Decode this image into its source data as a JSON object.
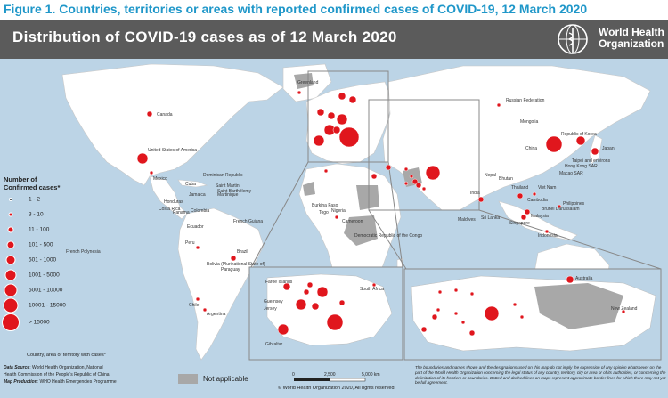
{
  "figure_title": "Figure 1. Countries, territories or areas with reported confirmed cases of COVID-19, 12 March 2020",
  "map_title": "Distribution of COVID-19  cases as of 12 March 2020",
  "who": {
    "line1": "World Health",
    "line2": "Organization"
  },
  "legend": {
    "title_line1": "Number of",
    "title_line2": "Confirmed cases*",
    "items": [
      {
        "label": "1 - 2"
      },
      {
        "label": "3 - 10"
      },
      {
        "label": "11 - 100"
      },
      {
        "label": "101 - 500"
      },
      {
        "label": "501 - 1000"
      },
      {
        "label": "1001 - 5000"
      },
      {
        "label": "5001 - 10000"
      },
      {
        "label": "10001 - 15000"
      },
      {
        "label": "> 15000"
      }
    ],
    "note": "Country, area or territory with cases*"
  },
  "not_applicable": "Not applicable",
  "scale": {
    "t0": "0",
    "t1": "2,500",
    "t2": "5,000 km"
  },
  "copyright": "© World Health Organization  2020, All rights reserved.",
  "source": {
    "line1_label": "Data Source",
    "line1_text": ": World Health Organization, National",
    "line2_text": "Health Commission of the People’s Republic of China",
    "line3_label": "Map Production",
    "line3_text": ": WHO Health Emergencies Programme"
  },
  "disclaimer": "The boundaries and names shown and the designations used on this map do not imply the expression of any opinion whatsoever on the part of the World Health Organization concerning the legal status of any country, territory, city or area or of its authorities, or concerning the delimitation of its frontiers or boundaries. Dotted and dashed lines on maps represent approximate border lines for which there may not yet be full agreement.",
  "map_labels": [
    "Canada",
    "United States of America",
    "Mexico",
    "Brazil",
    "Ecuador",
    "Peru",
    "Chile",
    "Argentina",
    "Colombia",
    "French Guiana",
    "Costa Rica",
    "Panama",
    "Paraguay",
    "Dominican Republic",
    "Saint Martin",
    "Martinique",
    "French Polynesia",
    "Saint Barthélemy",
    "Jamaica",
    "Cuba",
    "Honduras",
    "Bolivia (Plurinational State of)",
    "Russian Federation",
    "Mongolia",
    "China",
    "Japan",
    "Republic of Korea",
    "India",
    "Nepal",
    "Bhutan",
    "Sri Lanka",
    "Maldives",
    "Thailand",
    "Viet Nam",
    "Cambodia",
    "Malaysia",
    "Singapore",
    "Indonesia",
    "Philippines",
    "Brunei Darussalam",
    "Australia",
    "New Zealand",
    "Nigeria",
    "Togo",
    "Burkina Faso",
    "Cameroon",
    "Democratic Republic of the Congo",
    "South Africa",
    "Greenland",
    "Faroe Islands",
    "Gibraltar",
    "Hong Kong SAR",
    "Taipei and environs",
    "Macao SAR",
    "Guernsey",
    "Jersey"
  ],
  "colors": {
    "ocean": "#bcd4e6",
    "land": "#ffffff",
    "no_cases": "#ffffff",
    "not_applicable": "#a8a8a8",
    "bubble": "#e0161d",
    "header": "#5b5b5b",
    "title": "#1f97c9"
  }
}
